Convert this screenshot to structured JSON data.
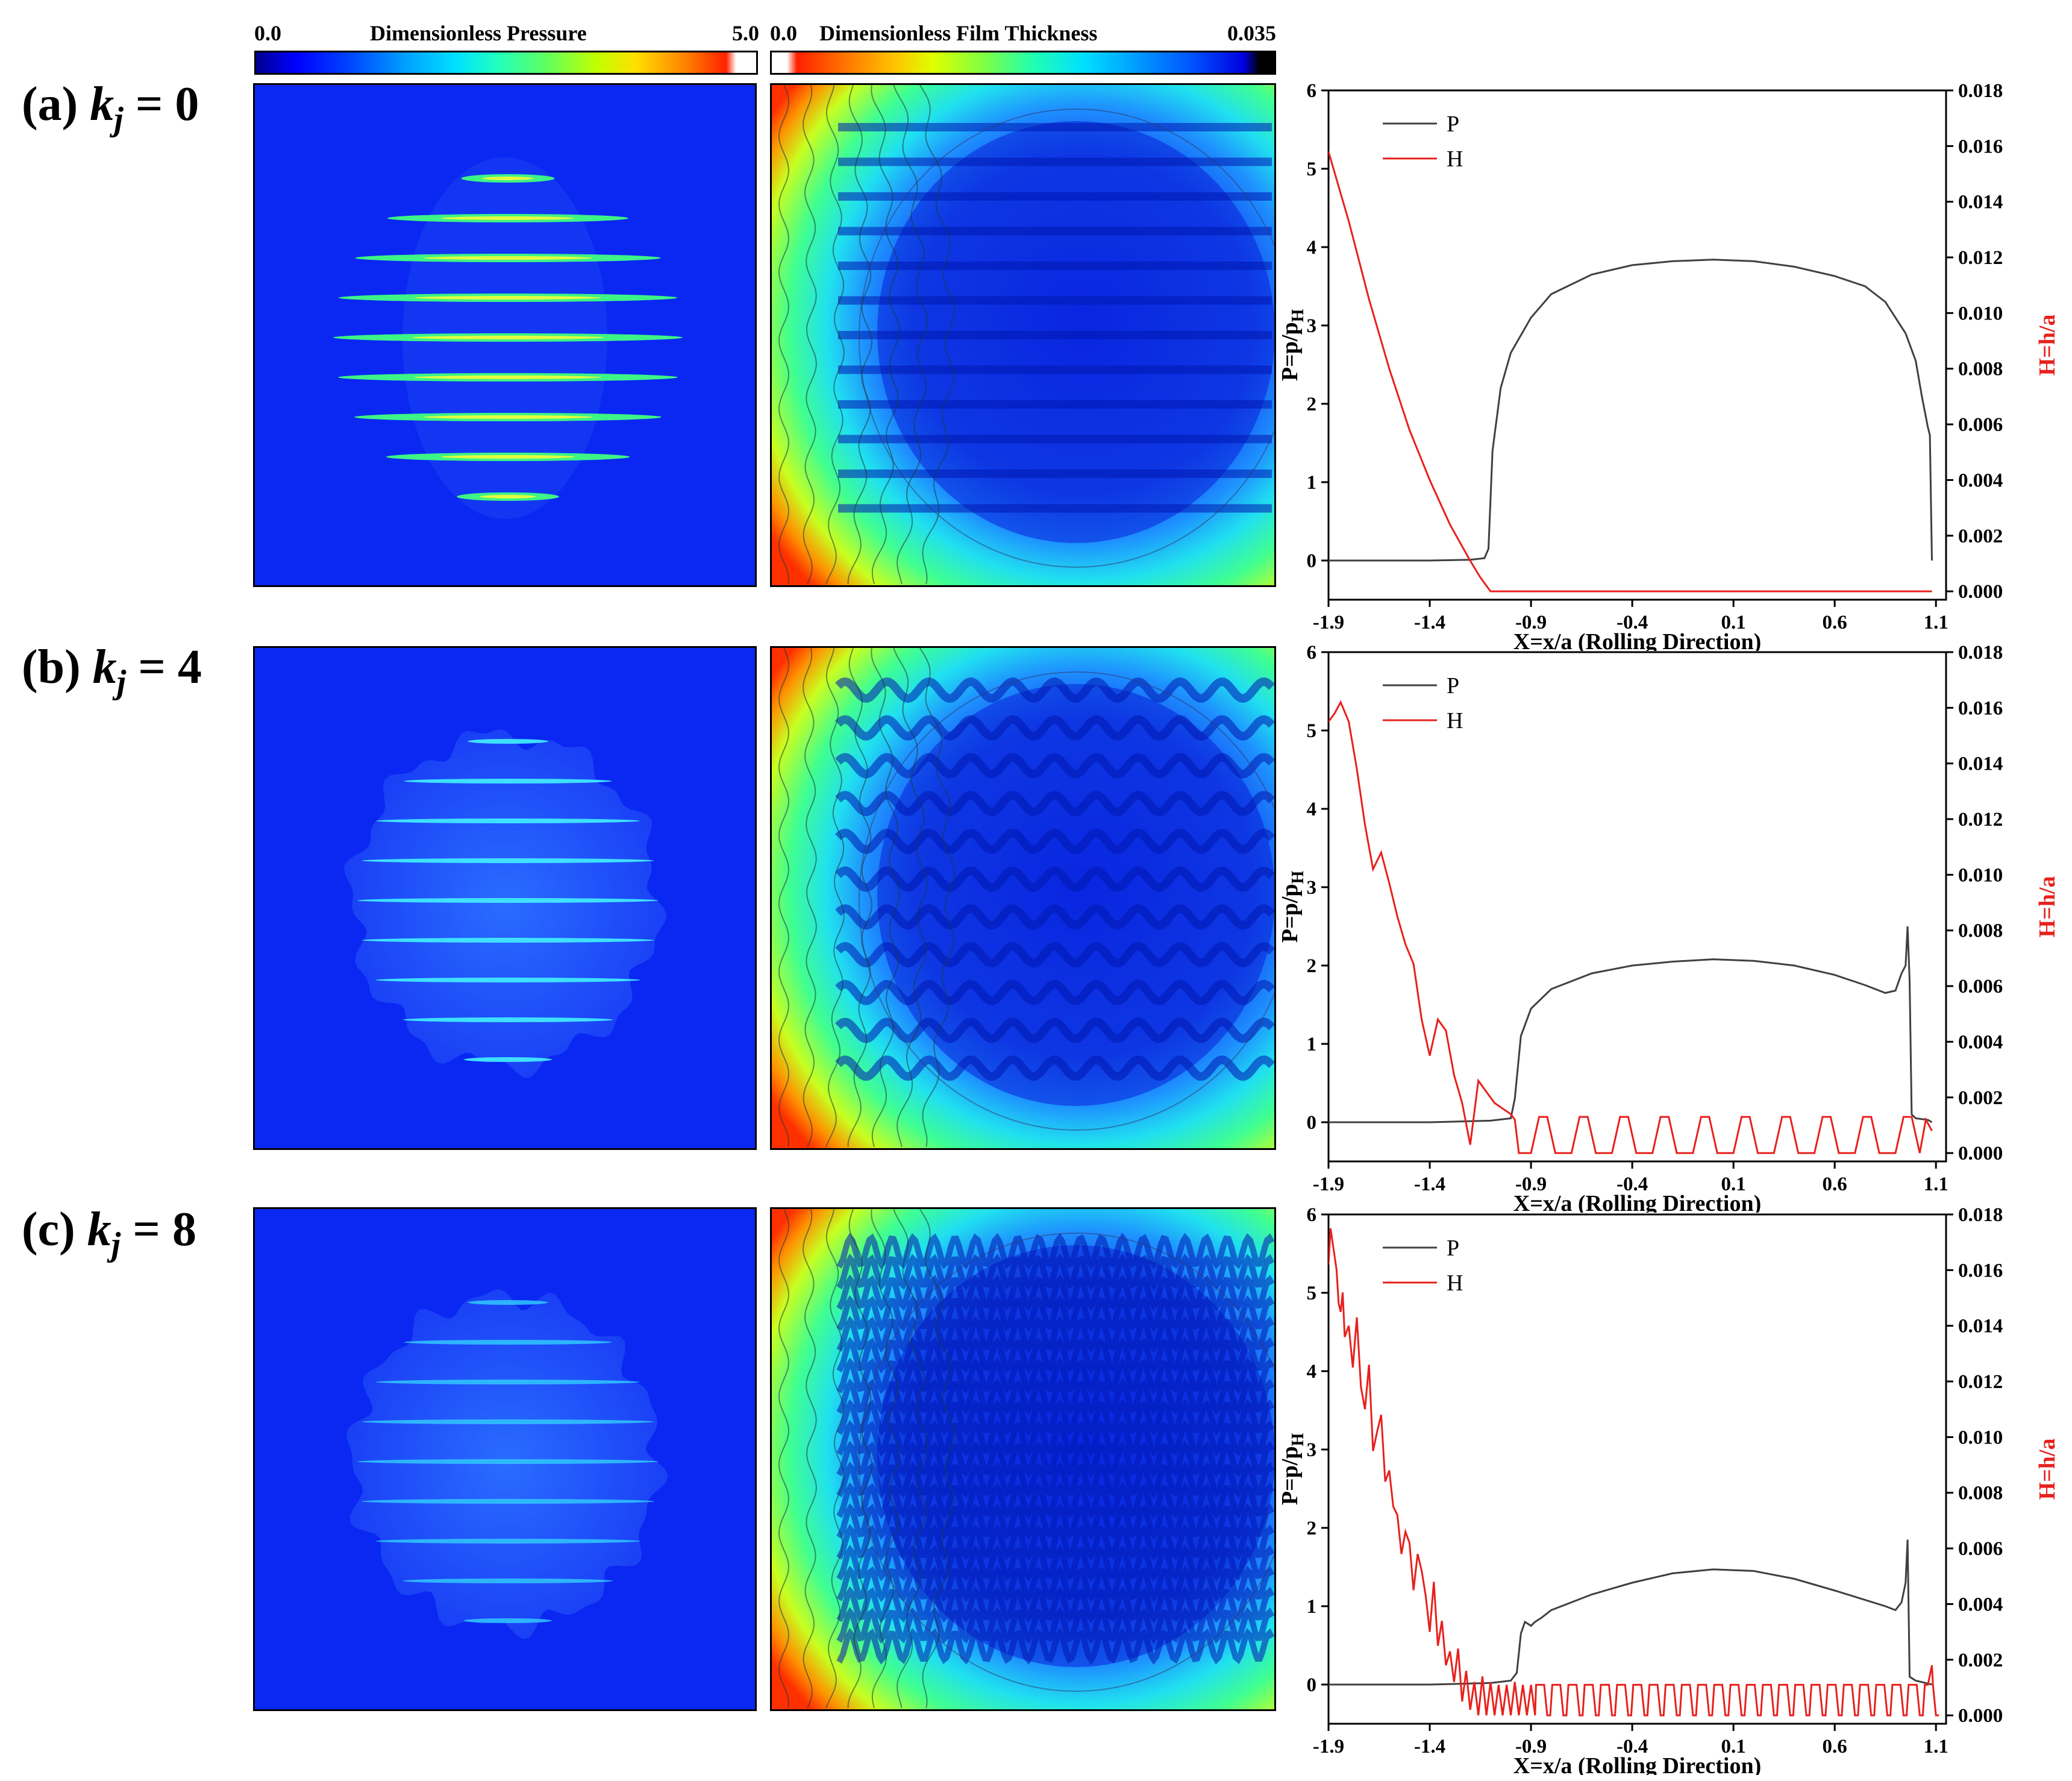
{
  "colorbars": {
    "pressure": {
      "min_label": "0.0",
      "title": "Dimensionless Pressure",
      "max_label": "5.0"
    },
    "film": {
      "min_label": "0.0",
      "title": "Dimensionless Film Thickness",
      "max_label": "0.035"
    }
  },
  "colors": {
    "P": "#404040",
    "H": "#e8201c",
    "h_axis": "#e8201c",
    "map_blue": "#0a28f2"
  },
  "rows": [
    {
      "label_prefix": "(a) ",
      "label_k": "k",
      "label_sub": "j",
      "label_suffix": " = 0",
      "waviness_k": 0
    },
    {
      "label_prefix": "(b) ",
      "label_k": "k",
      "label_sub": "j",
      "label_suffix": " = 4",
      "waviness_k": 4
    },
    {
      "label_prefix": "(c) ",
      "label_k": "k",
      "label_sub": "j",
      "label_suffix": " = 8",
      "waviness_k": 8
    }
  ],
  "chart_data": [
    {
      "type": "line",
      "title": "",
      "xlabel": "X=x/a (Rolling Direction)",
      "ylabel": "P=p/p_H",
      "ylabel_parts": {
        "main": "P=p/p",
        "sub": "H"
      },
      "y2label": "H=h/a",
      "xlim": [
        -1.9,
        1.15
      ],
      "ylim": [
        -0.5,
        6
      ],
      "y2lim": [
        -0.0003,
        0.018
      ],
      "xticks": [
        "-1.9",
        "-1.4",
        "-0.9",
        "-0.4",
        "0.1",
        "0.6",
        "1.1"
      ],
      "yticks": [
        "0",
        "1",
        "2",
        "3",
        "4",
        "5",
        "6"
      ],
      "y2ticks": [
        "0.000",
        "0.002",
        "0.004",
        "0.006",
        "0.008",
        "0.010",
        "0.012",
        "0.014",
        "0.016",
        "0.018"
      ],
      "legend": [
        "P",
        "H"
      ],
      "series": [
        {
          "name": "P",
          "x": [
            -1.9,
            -1.4,
            -1.2,
            -1.13,
            -1.11,
            -1.09,
            -1.05,
            -1.0,
            -0.9,
            -0.8,
            -0.6,
            -0.4,
            -0.2,
            0.0,
            0.2,
            0.4,
            0.6,
            0.75,
            0.85,
            0.95,
            1.0,
            1.03,
            1.06,
            1.07,
            1.08
          ],
          "y": [
            0.0,
            0.0,
            0.01,
            0.03,
            0.15,
            1.4,
            2.2,
            2.65,
            3.1,
            3.4,
            3.65,
            3.77,
            3.82,
            3.84,
            3.82,
            3.75,
            3.63,
            3.5,
            3.3,
            2.9,
            2.55,
            2.1,
            1.7,
            1.6,
            0.0
          ]
        },
        {
          "name": "H",
          "x": [
            -1.9,
            -1.88,
            -1.8,
            -1.7,
            -1.6,
            -1.5,
            -1.4,
            -1.3,
            -1.2,
            -1.15,
            -1.12,
            -1.1,
            -0.9,
            -0.5,
            0.0,
            0.5,
            1.0,
            1.08
          ],
          "y": [
            0.0158,
            0.0153,
            0.0133,
            0.0105,
            0.008,
            0.0058,
            0.004,
            0.0024,
            0.0011,
            0.0005,
            0.0002,
            0.0,
            0.0,
            0.0,
            0.0,
            0.0,
            0.0,
            0.0
          ]
        }
      ]
    },
    {
      "type": "line",
      "title": "",
      "xlabel": "X=x/a (Rolling Direction)",
      "ylabel": "P=p/p_H",
      "ylabel_parts": {
        "main": "P=p/p",
        "sub": "H"
      },
      "y2label": "H=h/a",
      "xlim": [
        -1.9,
        1.15
      ],
      "ylim": [
        -0.5,
        6
      ],
      "y2lim": [
        -0.0003,
        0.018
      ],
      "xticks": [
        "-1.9",
        "-1.4",
        "-0.9",
        "-0.4",
        "0.1",
        "0.6",
        "1.1"
      ],
      "yticks": [
        "0",
        "1",
        "2",
        "3",
        "4",
        "5",
        "6"
      ],
      "y2ticks": [
        "0.000",
        "0.002",
        "0.004",
        "0.006",
        "0.008",
        "0.010",
        "0.012",
        "0.014",
        "0.016",
        "0.018"
      ],
      "legend": [
        "P",
        "H"
      ],
      "series": [
        {
          "name": "P",
          "x": [
            -1.9,
            -1.4,
            -1.1,
            -1.0,
            -0.98,
            -0.95,
            -0.9,
            -0.8,
            -0.6,
            -0.4,
            -0.2,
            0.0,
            0.2,
            0.4,
            0.6,
            0.75,
            0.85,
            0.9,
            0.93,
            0.95,
            0.96,
            0.97,
            0.98,
            1.0,
            1.06,
            1.08
          ],
          "y": [
            0.0,
            0.0,
            0.02,
            0.05,
            0.3,
            1.1,
            1.45,
            1.7,
            1.9,
            2.0,
            2.05,
            2.08,
            2.06,
            2.0,
            1.88,
            1.75,
            1.65,
            1.68,
            1.9,
            2.0,
            2.5,
            1.8,
            0.1,
            0.05,
            0.03,
            0.0
          ]
        },
        {
          "name": "H",
          "x": [
            -1.9,
            -1.87,
            -1.84,
            -1.8,
            -1.76,
            -1.72,
            -1.68,
            -1.64,
            -1.6,
            -1.56,
            -1.52,
            -1.48,
            -1.44,
            -1.4,
            -1.36,
            -1.32,
            -1.28,
            -1.24,
            -1.2,
            -1.16,
            -1.12,
            -1.08,
            -1.04,
            -1.0,
            -0.98,
            -0.96,
            -0.9,
            -0.86,
            -0.82,
            -0.78,
            -0.7,
            -0.66,
            -0.62,
            -0.58,
            -0.5,
            -0.46,
            -0.42,
            -0.38,
            -0.3,
            -0.26,
            -0.22,
            -0.18,
            -0.1,
            -0.06,
            -0.02,
            0.02,
            0.1,
            0.14,
            0.18,
            0.22,
            0.3,
            0.34,
            0.38,
            0.42,
            0.5,
            0.54,
            0.58,
            0.62,
            0.7,
            0.74,
            0.78,
            0.82,
            0.9,
            0.94,
            0.98,
            1.02,
            1.05,
            1.08
          ],
          "y": [
            0.0155,
            0.0158,
            0.0162,
            0.0155,
            0.0138,
            0.0118,
            0.0102,
            0.0108,
            0.0097,
            0.0085,
            0.0075,
            0.0068,
            0.0048,
            0.0035,
            0.0048,
            0.0044,
            0.0028,
            0.0018,
            0.0003,
            0.0026,
            0.0022,
            0.0018,
            0.0016,
            0.0014,
            0.0012,
            0.0,
            0.0,
            0.0013,
            0.0013,
            0.0,
            0.0,
            0.0013,
            0.0013,
            0.0,
            0.0,
            0.0013,
            0.0013,
            0.0,
            0.0,
            0.0013,
            0.0013,
            0.0,
            0.0,
            0.0013,
            0.0013,
            0.0,
            0.0,
            0.0013,
            0.0013,
            0.0,
            0.0,
            0.0013,
            0.0013,
            0.0,
            0.0,
            0.0013,
            0.0013,
            0.0,
            0.0,
            0.0013,
            0.0013,
            0.0,
            0.0,
            0.0013,
            0.0013,
            0.0,
            0.0012,
            0.0008
          ]
        }
      ]
    },
    {
      "type": "line",
      "title": "",
      "xlabel": "X=x/a (Rolling Direction)",
      "ylabel": "P=p/p_H",
      "ylabel_parts": {
        "main": "P=p/p",
        "sub": "H"
      },
      "y2label": "H=h/a",
      "xlim": [
        -1.9,
        1.15
      ],
      "ylim": [
        -0.5,
        6
      ],
      "y2lim": [
        -0.0003,
        0.018
      ],
      "xticks": [
        "-1.9",
        "-1.4",
        "-0.9",
        "-0.4",
        "0.1",
        "0.6",
        "1.1"
      ],
      "yticks": [
        "0",
        "1",
        "2",
        "3",
        "4",
        "5",
        "6"
      ],
      "y2ticks": [
        "0.000",
        "0.002",
        "0.004",
        "0.006",
        "0.008",
        "0.010",
        "0.012",
        "0.014",
        "0.016",
        "0.018"
      ],
      "legend": [
        "P",
        "H"
      ],
      "series": [
        {
          "name": "P",
          "x": [
            -1.9,
            -1.4,
            -1.1,
            -1.0,
            -0.97,
            -0.95,
            -0.93,
            -0.9,
            -0.88,
            -0.85,
            -0.8,
            -0.6,
            -0.4,
            -0.2,
            0.0,
            0.2,
            0.4,
            0.6,
            0.75,
            0.85,
            0.9,
            0.93,
            0.95,
            0.96,
            0.97,
            1.0,
            1.05,
            1.08
          ],
          "y": [
            0.0,
            0.0,
            0.02,
            0.05,
            0.15,
            0.65,
            0.8,
            0.75,
            0.8,
            0.85,
            0.95,
            1.15,
            1.3,
            1.42,
            1.47,
            1.45,
            1.35,
            1.2,
            1.08,
            1.0,
            0.95,
            1.05,
            1.3,
            1.85,
            0.1,
            0.05,
            0.02,
            0.0
          ]
        },
        {
          "name": "H",
          "x": [
            -1.9,
            -1.89,
            -1.88,
            -1.87,
            -1.86,
            -1.85,
            -1.84,
            -1.83,
            -1.82,
            -1.8,
            -1.78,
            -1.76,
            -1.74,
            -1.72,
            -1.7,
            -1.68,
            -1.66,
            -1.64,
            -1.62,
            -1.6,
            -1.58,
            -1.56,
            -1.54,
            -1.52,
            -1.5,
            -1.48,
            -1.46,
            -1.44,
            -1.42,
            -1.4,
            -1.38,
            -1.36,
            -1.34,
            -1.32,
            -1.3,
            -1.28,
            -1.26,
            -1.24,
            -1.22,
            -1.2,
            -1.18,
            -1.16,
            -1.14,
            -1.12,
            -1.1,
            -1.08,
            -1.06,
            -1.04,
            -1.02,
            -1.0,
            -0.98,
            -0.96,
            -0.94,
            -0.92,
            -0.9,
            -0.88
          ],
          "y": [
            0.0162,
            0.0175,
            0.017,
            0.0165,
            0.016,
            0.0148,
            0.0145,
            0.0152,
            0.0136,
            0.014,
            0.0125,
            0.0143,
            0.0118,
            0.011,
            0.0126,
            0.0095,
            0.0102,
            0.0108,
            0.0084,
            0.0088,
            0.0075,
            0.0072,
            0.0058,
            0.0066,
            0.0062,
            0.0045,
            0.0058,
            0.0052,
            0.0043,
            0.003,
            0.0048,
            0.0025,
            0.0034,
            0.0018,
            0.0023,
            0.0012,
            0.0024,
            0.0005,
            0.0016,
            0.0002,
            0.0012,
            0.0,
            0.0014,
            0.0,
            0.0012,
            0.0,
            0.0011,
            0.0,
            0.0011,
            0.0,
            0.0012,
            0.0,
            0.0011,
            0.0,
            0.0011,
            0.0
          ],
          "periodic_tail": {
            "from": -0.88,
            "to": 1.05,
            "period": 0.08,
            "high": 0.0011,
            "low": 0.0
          },
          "end_point": {
            "x": 1.08,
            "y": 0.0018
          }
        }
      ]
    }
  ]
}
